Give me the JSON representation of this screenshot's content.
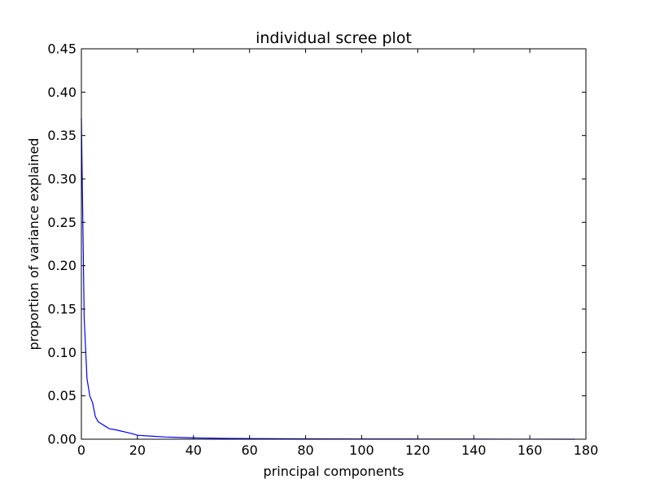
{
  "chart_data": {
    "type": "line",
    "title": "individual scree plot",
    "xlabel": "principal components",
    "ylabel": "proportion of variance explained",
    "xlim": [
      0,
      180
    ],
    "ylim": [
      0,
      0.45
    ],
    "xticks": [
      0,
      20,
      40,
      60,
      80,
      100,
      120,
      140,
      160,
      180
    ],
    "xtick_labels": [
      "0",
      "20",
      "40",
      "60",
      "80",
      "100",
      "120",
      "140",
      "160",
      "180"
    ],
    "yticks": [
      0,
      0.05,
      0.1,
      0.15,
      0.2,
      0.25,
      0.3,
      0.35,
      0.4,
      0.45
    ],
    "ytick_labels": [
      "0.00",
      "0.05",
      "0.10",
      "0.15",
      "0.20",
      "0.25",
      "0.30",
      "0.35",
      "0.40",
      "0.45"
    ],
    "grid": false,
    "series": [
      {
        "color": "#0000ff",
        "x": [
          0,
          1,
          2,
          3,
          4,
          5,
          6,
          7,
          8,
          9,
          10,
          12,
          14,
          16,
          18,
          20,
          25,
          30,
          35,
          40,
          50,
          60,
          80,
          100,
          120,
          140,
          160,
          176
        ],
        "y": [
          0.37,
          0.14,
          0.07,
          0.05,
          0.042,
          0.026,
          0.02,
          0.018,
          0.016,
          0.014,
          0.012,
          0.011,
          0.0095,
          0.008,
          0.0065,
          0.0045,
          0.0035,
          0.0025,
          0.002,
          0.0015,
          0.001,
          0.0007,
          0.0004,
          0.0003,
          0.0002,
          0.0001,
          5e-05,
          2e-05
        ]
      }
    ]
  }
}
